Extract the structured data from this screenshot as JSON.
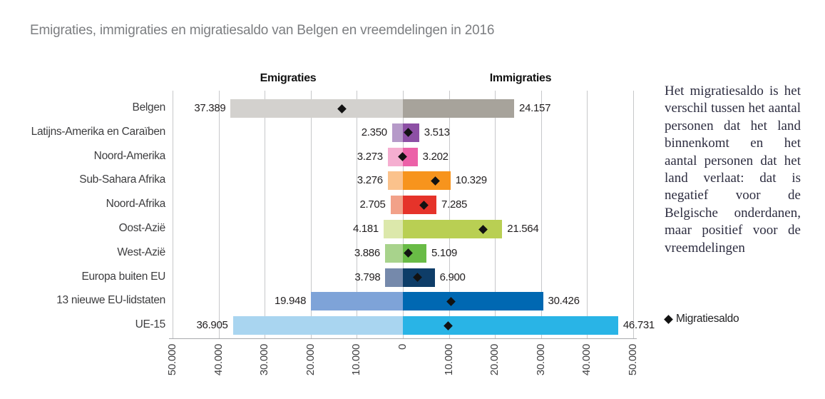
{
  "title": "Emigraties, immigraties en migratiesaldo van Belgen en vreemdelingen in 2016",
  "side_note": "Het migratiesaldo is het verschil tussen het aantal personen dat het land binnenkomt en het aantal personen dat het land verlaat: dat is negatief voor de Belgische onderdanen, maar positief voor de vreemdelingen",
  "chart_data": {
    "type": "bar",
    "variant": "diverging-horizontal",
    "title": "Emigraties, immigraties en migratiesaldo van Belgen en vreemdelingen in 2016",
    "column_headers": {
      "left": "Emigraties",
      "right": "Immigraties"
    },
    "categories": [
      "Belgen",
      "Latijns-Amerika en Caraïben",
      "Noord-Amerika",
      "Sub-Sahara Afrika",
      "Noord-Afrika",
      "Oost-Azië",
      "West-Azië",
      "Europa buiten EU",
      "13 nieuwe EU-lidstaten",
      "UE-15"
    ],
    "series": [
      {
        "name": "Emigraties",
        "side": "left",
        "values": [
          37389,
          2350,
          3273,
          3276,
          2705,
          4181,
          3886,
          3798,
          19948,
          36905
        ]
      },
      {
        "name": "Immigraties",
        "side": "right",
        "values": [
          24157,
          3513,
          3202,
          10329,
          7285,
          21564,
          5109,
          6900,
          30426,
          46731
        ]
      },
      {
        "name": "Migratiesaldo",
        "marker": "diamond",
        "values": [
          -13232,
          1163,
          -71,
          7053,
          4580,
          17383,
          1223,
          3102,
          10478,
          9826
        ]
      }
    ],
    "value_labels": {
      "emigraties": [
        "37.389",
        "2.350",
        "3.273",
        "3.276",
        "2.705",
        "4.181",
        "3.886",
        "3.798",
        "19.948",
        "36.905"
      ],
      "immigraties": [
        "24.157",
        "3.513",
        "3.202",
        "10.329",
        "7.285",
        "21.564",
        "5.109",
        "6.900",
        "30.426",
        "46.731"
      ]
    },
    "bar_colors": {
      "emigraties": [
        "#d3d1ce",
        "#b69ac9",
        "#f5aed0",
        "#fbc28c",
        "#f2a189",
        "#dce8ab",
        "#a8d38c",
        "#7589ab",
        "#7ea3d8",
        "#a9d5f0"
      ],
      "immigraties": [
        "#a7a39b",
        "#8d50a5",
        "#ec61a8",
        "#f7941d",
        "#e5332a",
        "#b9cf53",
        "#69bb46",
        "#0e3d68",
        "#0068b2",
        "#29b4e6"
      ]
    },
    "marker_color": "#121212",
    "x_ticks": [
      "50.000",
      "40.000",
      "30.000",
      "20.000",
      "10.000",
      "0",
      "10.000",
      "20.000",
      "30.000",
      "40.000",
      "50.000"
    ],
    "axis_range": [
      -50000,
      50000
    ],
    "grid": true,
    "legend": {
      "label": "Migratiesaldo",
      "position": "right"
    }
  }
}
